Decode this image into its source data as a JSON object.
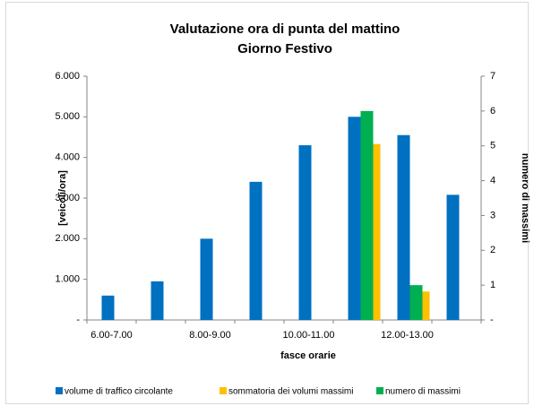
{
  "chart_data": {
    "type": "bar",
    "title": [
      "Valutazione ora di punta del mattino",
      "Giorno Festivo"
    ],
    "xlabel": "fasce orarie",
    "ylabel": "[veicoli/ora]",
    "y2label": "numero di massimi",
    "categories": [
      "6.00-7.00",
      null,
      "8.00-9.00",
      null,
      "10.00-11.00",
      null,
      "12.00-13.00",
      null
    ],
    "series": [
      {
        "name": "volume di traffico circolante",
        "color": "#0070c0",
        "values": [
          600,
          950,
          2000,
          3400,
          4300,
          5000,
          4550,
          3080
        ]
      },
      {
        "name": "sommatoria dei volumi massimi",
        "color": "#ffc000",
        "values": [
          null,
          null,
          null,
          null,
          null,
          4330,
          700,
          null
        ]
      },
      {
        "name": "numero di massimi",
        "color": "#00b050",
        "axis": "y2",
        "values": [
          null,
          null,
          null,
          null,
          null,
          6,
          1,
          null
        ]
      }
    ],
    "ylim": [
      0,
      6000
    ],
    "yticks": [
      {
        "value": 0,
        "label": "-"
      },
      {
        "value": 1000,
        "label": "1.000"
      },
      {
        "value": 2000,
        "label": "2.000"
      },
      {
        "value": 3000,
        "label": "3.000"
      },
      {
        "value": 4000,
        "label": "4.000"
      },
      {
        "value": 5000,
        "label": "5.000"
      },
      {
        "value": 6000,
        "label": "6.000"
      }
    ],
    "y2lim": [
      0,
      7
    ],
    "y2ticks": [
      {
        "value": 0,
        "label": "-"
      },
      1,
      2,
      3,
      4,
      5,
      6,
      7
    ],
    "legend": "bottom"
  }
}
